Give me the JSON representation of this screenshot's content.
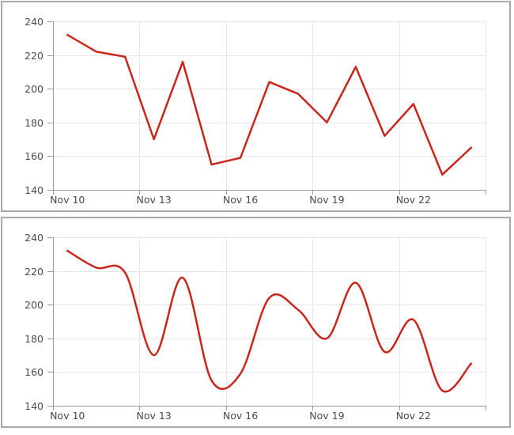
{
  "colors": {
    "series_red": "#c8261c",
    "grid": "#e6e6e6",
    "axis": "#9b9b9b",
    "tick_label": "#4a4a4a",
    "panel_border": "#a9a9a9",
    "background": "#ffffff"
  },
  "chart_data": [
    {
      "type": "line",
      "smooth": false,
      "title": "",
      "legend": "none",
      "grid": "on",
      "x_tick_labels": [
        "Nov 10",
        "Nov 13",
        "Nov 16",
        "Nov 19",
        "Nov 22"
      ],
      "label_every": 3,
      "values": [
        232,
        222,
        219,
        170,
        216,
        155,
        159,
        204,
        197,
        180,
        213,
        172,
        191,
        149,
        165
      ],
      "ylim": [
        140,
        240
      ],
      "y_tick_labels": [
        "140",
        "160",
        "180",
        "200",
        "220",
        "240"
      ]
    },
    {
      "type": "line",
      "smooth": true,
      "title": "",
      "legend": "none",
      "grid": "on",
      "x_tick_labels": [
        "Nov 10",
        "Nov 13",
        "Nov 16",
        "Nov 19",
        "Nov 22"
      ],
      "label_every": 3,
      "values": [
        232,
        222,
        219,
        170,
        216,
        155,
        159,
        204,
        197,
        180,
        213,
        172,
        191,
        149,
        165
      ],
      "ylim": [
        140,
        240
      ],
      "y_tick_labels": [
        "140",
        "160",
        "180",
        "200",
        "220",
        "240"
      ]
    }
  ]
}
